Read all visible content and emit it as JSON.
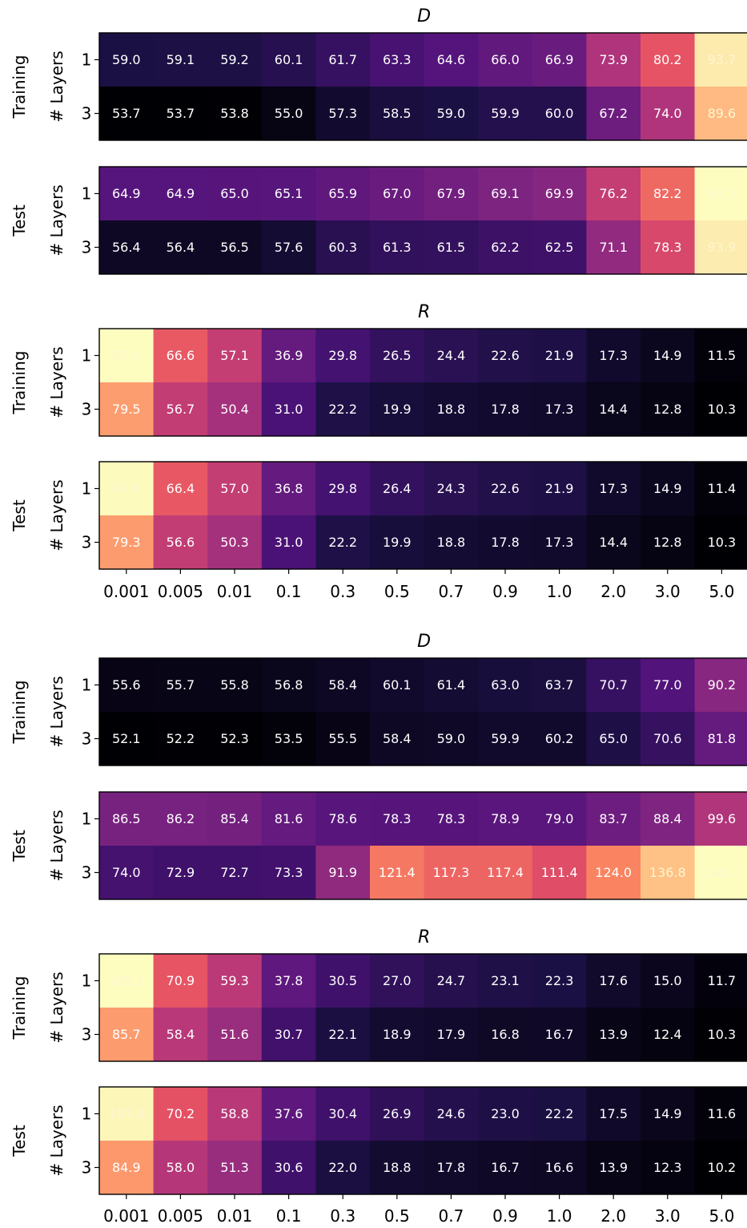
{
  "chart_data": [
    {
      "type": "heatmap",
      "title": "D",
      "x_categories": [
        "0.001",
        "0.005",
        "0.01",
        "0.1",
        "0.3",
        "0.5",
        "0.7",
        "0.9",
        "1.0",
        "2.0",
        "3.0",
        "5.0"
      ],
      "y_categories": [
        "1",
        "3"
      ],
      "ylabel": "# Layers",
      "colormap": "magma",
      "panels": [
        {
          "name": "Training",
          "values": [
            [
              59.0,
              59.1,
              59.2,
              60.1,
              61.7,
              63.3,
              64.6,
              66.0,
              66.9,
              73.9,
              80.2,
              93.7
            ],
            [
              53.7,
              53.7,
              53.8,
              55.0,
              57.3,
              58.5,
              59.0,
              59.9,
              60.0,
              67.2,
              74.0,
              89.6
            ]
          ]
        },
        {
          "name": "Test",
          "values": [
            [
              64.9,
              64.9,
              65.0,
              65.1,
              65.9,
              67.0,
              67.9,
              69.1,
              69.9,
              76.2,
              82.2,
              95.3
            ],
            [
              56.4,
              56.4,
              56.5,
              57.6,
              60.3,
              61.3,
              61.5,
              62.2,
              62.5,
              71.1,
              78.3,
              93.9
            ]
          ]
        }
      ]
    },
    {
      "type": "heatmap",
      "title": "R",
      "x_categories": [
        "0.001",
        "0.005",
        "0.01",
        "0.1",
        "0.3",
        "0.5",
        "0.7",
        "0.9",
        "1.0",
        "2.0",
        "3.0",
        "5.0"
      ],
      "y_categories": [
        "1",
        "3"
      ],
      "ylabel": "# Layers",
      "colormap": "magma",
      "panels": [
        {
          "name": "Training",
          "values": [
            [
              97.0,
              66.6,
              57.1,
              36.9,
              29.8,
              26.5,
              24.4,
              22.6,
              21.9,
              17.3,
              14.9,
              11.5
            ],
            [
              79.5,
              56.7,
              50.4,
              31.0,
              22.2,
              19.9,
              18.8,
              17.8,
              17.3,
              14.4,
              12.8,
              10.3
            ]
          ]
        },
        {
          "name": "Test",
          "values": [
            [
              96.6,
              66.4,
              57.0,
              36.8,
              29.8,
              26.4,
              24.3,
              22.6,
              21.9,
              17.3,
              14.9,
              11.4
            ],
            [
              79.3,
              56.6,
              50.3,
              31.0,
              22.2,
              19.9,
              18.8,
              17.8,
              17.3,
              14.4,
              12.8,
              10.3
            ]
          ]
        }
      ]
    },
    {
      "type": "heatmap",
      "title": "D",
      "x_categories": [
        "0.001",
        "0.005",
        "0.01",
        "0.1",
        "0.3",
        "0.5",
        "0.7",
        "0.9",
        "1.0",
        "2.0",
        "3.0",
        "5.0"
      ],
      "y_categories": [
        "1",
        "3"
      ],
      "ylabel": "# Layers",
      "colormap": "magma",
      "panels": [
        {
          "name": "Training",
          "values": [
            [
              55.6,
              55.7,
              55.8,
              56.8,
              58.4,
              60.1,
              61.4,
              63.0,
              63.7,
              70.7,
              77.0,
              90.2
            ],
            [
              52.1,
              52.2,
              52.3,
              53.5,
              55.5,
              58.4,
              59.0,
              59.9,
              60.2,
              65.0,
              70.6,
              81.8
            ]
          ]
        },
        {
          "name": "Test",
          "values": [
            [
              86.5,
              86.2,
              85.4,
              81.6,
              78.6,
              78.3,
              78.3,
              78.9,
              79.0,
              83.7,
              88.4,
              99.6
            ],
            [
              74.0,
              72.9,
              72.7,
              73.3,
              91.9,
              121.4,
              117.3,
              117.4,
              111.4,
              124.0,
              136.8,
              148.7
            ]
          ]
        }
      ]
    },
    {
      "type": "heatmap",
      "title": "R",
      "x_categories": [
        "0.001",
        "0.005",
        "0.01",
        "0.1",
        "0.3",
        "0.5",
        "0.7",
        "0.9",
        "1.0",
        "2.0",
        "3.0",
        "5.0"
      ],
      "y_categories": [
        "1",
        "3"
      ],
      "ylabel": "# Layers",
      "colormap": "magma",
      "panels": [
        {
          "name": "Training",
          "values": [
            [
              105.1,
              70.9,
              59.3,
              37.8,
              30.5,
              27.0,
              24.7,
              23.1,
              22.3,
              17.6,
              15.0,
              11.7
            ],
            [
              85.7,
              58.4,
              51.6,
              30.7,
              22.1,
              18.9,
              17.9,
              16.8,
              16.7,
              13.9,
              12.4,
              10.3
            ]
          ]
        },
        {
          "name": "Test",
          "values": [
            [
              103.8,
              70.2,
              58.8,
              37.6,
              30.4,
              26.9,
              24.6,
              23.0,
              22.2,
              17.5,
              14.9,
              11.6
            ],
            [
              84.9,
              58.0,
              51.3,
              30.6,
              22.0,
              18.8,
              17.8,
              16.7,
              16.6,
              13.9,
              12.3,
              10.2
            ]
          ]
        }
      ]
    }
  ]
}
